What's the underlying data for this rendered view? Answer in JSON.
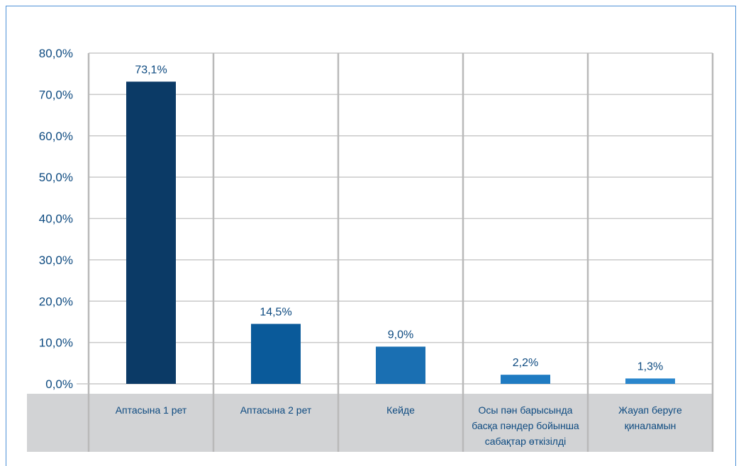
{
  "colors": {
    "accent": "#4a8fd6",
    "text": "#0d4a80",
    "grid": "#c9c9c9",
    "category_band": "#d2d3d5",
    "bars": [
      "#0b3a66",
      "#0a5a9a",
      "#1a6fb2",
      "#1f7bc2",
      "#2a86cc"
    ]
  },
  "chart_data": {
    "type": "bar",
    "title": "",
    "xlabel": "",
    "ylabel": "",
    "ylim": [
      0,
      80
    ],
    "yticks": [
      "0,0%",
      "10,0%",
      "20,0%",
      "30,0%",
      "40,0%",
      "50,0%",
      "60,0%",
      "70,0%",
      "80,0%"
    ],
    "grid": true,
    "legend": "none",
    "categories": [
      [
        "Аптасына 1 рет"
      ],
      [
        "Аптасына 2 рет"
      ],
      [
        "Кейде"
      ],
      [
        "Осы пән барысында",
        "басқа пәндер бойынша",
        "сабақтар өткізілді"
      ],
      [
        "Жауап беруге",
        "қиналамын"
      ]
    ],
    "values": [
      73.1,
      14.5,
      9.0,
      2.2,
      1.3
    ],
    "data_labels": [
      "73,1%",
      "14,5%",
      "9,0%",
      "2,2%",
      "1,3%"
    ]
  }
}
